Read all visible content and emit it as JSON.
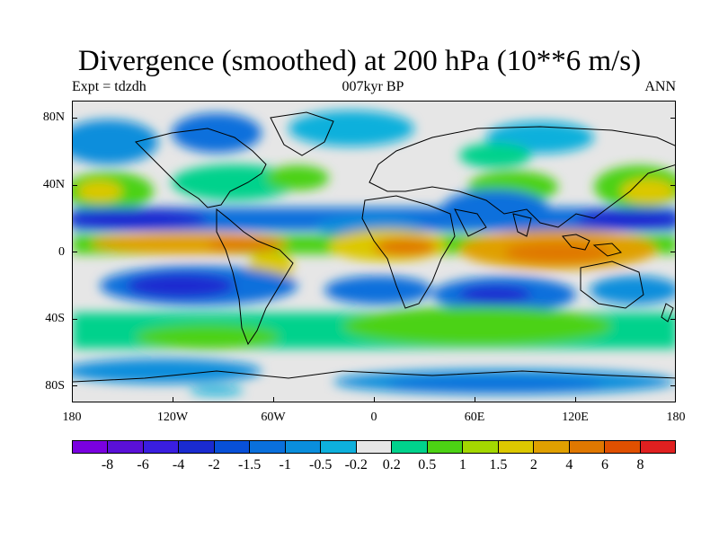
{
  "title": "Divergence (smoothed) at 200 hPa (10**6 m/s)",
  "left_string": "Expt = tdzdh",
  "center_string": "007kyr BP",
  "right_string": "ANN",
  "lat_labels": [
    "80N",
    "40N",
    "0",
    "40S",
    "80S"
  ],
  "lon_labels": [
    "180",
    "120W",
    "60W",
    "0",
    "60E",
    "120E",
    "180"
  ],
  "colorbar": {
    "colors": [
      "#7a00e0",
      "#5a10d8",
      "#3a1ee0",
      "#1a2bd0",
      "#0850d8",
      "#0a70dc",
      "#0a8edc",
      "#0eb0dc",
      "#e6e6e6",
      "#00d28c",
      "#4cd214",
      "#a4d800",
      "#dcc800",
      "#e0a000",
      "#e07800",
      "#e05000",
      "#e02020"
    ],
    "labels": [
      "-8",
      "-6",
      "-4",
      "-2",
      "-1.5",
      "-1",
      "-0.5",
      "-0.2",
      "0.2",
      "0.5",
      "1",
      "1.5",
      "2",
      "4",
      "6",
      "8"
    ]
  }
}
